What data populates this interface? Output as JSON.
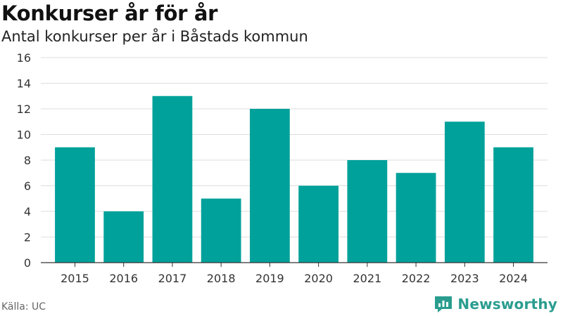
{
  "title": "Konkurser år för år",
  "subtitle": "Antal konkurser per år i Båstads kommun",
  "source": "Källa: UC",
  "brand": "Newsworthy",
  "colors": {
    "bar": "#00a19a",
    "grid": "#dddddd",
    "axis": "#333333",
    "brand": "#2a9d8f"
  },
  "chart_data": {
    "type": "bar",
    "title": "Konkurser år för år",
    "subtitle": "Antal konkurser per år i Båstads kommun",
    "xlabel": "",
    "ylabel": "",
    "categories": [
      "2015",
      "2016",
      "2017",
      "2018",
      "2019",
      "2020",
      "2021",
      "2022",
      "2023",
      "2024"
    ],
    "values": [
      9,
      4,
      13,
      5,
      12,
      6,
      8,
      7,
      11,
      9
    ],
    "ylim": [
      0,
      16
    ],
    "yticks": [
      0,
      2,
      4,
      6,
      8,
      10,
      12,
      14,
      16
    ],
    "grid": true,
    "legend": "none"
  }
}
